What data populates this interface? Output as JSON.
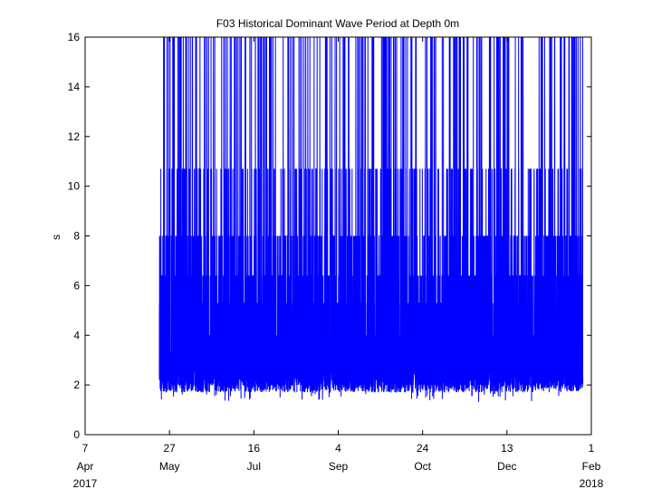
{
  "chart_data": {
    "type": "line",
    "title": "F03 Historical Dominant Wave Period at Depth 0m",
    "xlabel": "",
    "ylabel": "s",
    "ylim": [
      0,
      16
    ],
    "xlim": [
      "2017-04-07",
      "2018-02-01"
    ],
    "grid": false,
    "legend": "none",
    "y_ticks": [
      "0",
      "2",
      "4",
      "6",
      "8",
      "10",
      "12",
      "14",
      "16"
    ],
    "x_ticks": [
      {
        "day": "7",
        "month": "Apr",
        "year": "2017",
        "date": "2017-04-07"
      },
      {
        "day": "27",
        "month": "May",
        "year": "",
        "date": "2017-05-27"
      },
      {
        "day": "16",
        "month": "Jul",
        "year": "",
        "date": "2017-07-16"
      },
      {
        "day": "4",
        "month": "Sep",
        "year": "",
        "date": "2017-09-04"
      },
      {
        "day": "24",
        "month": "Oct",
        "year": "",
        "date": "2017-10-24"
      },
      {
        "day": "13",
        "month": "Dec",
        "year": "",
        "date": "2017-12-13"
      },
      {
        "day": "1",
        "month": "Feb",
        "year": "2018",
        "date": "2018-02-01"
      }
    ],
    "series": [
      {
        "color": "#0000ff",
        "start": "2017-05-21",
        "end": "2018-01-27",
        "typical_low": 1.7,
        "typical_high": 6.5,
        "discrete_levels": [
          2.0,
          2.5,
          2.9,
          3.3,
          4.0,
          5.3,
          6.4,
          8.0,
          10.7,
          16.0
        ],
        "min_value": 1.3,
        "max_value": 16
      }
    ]
  }
}
